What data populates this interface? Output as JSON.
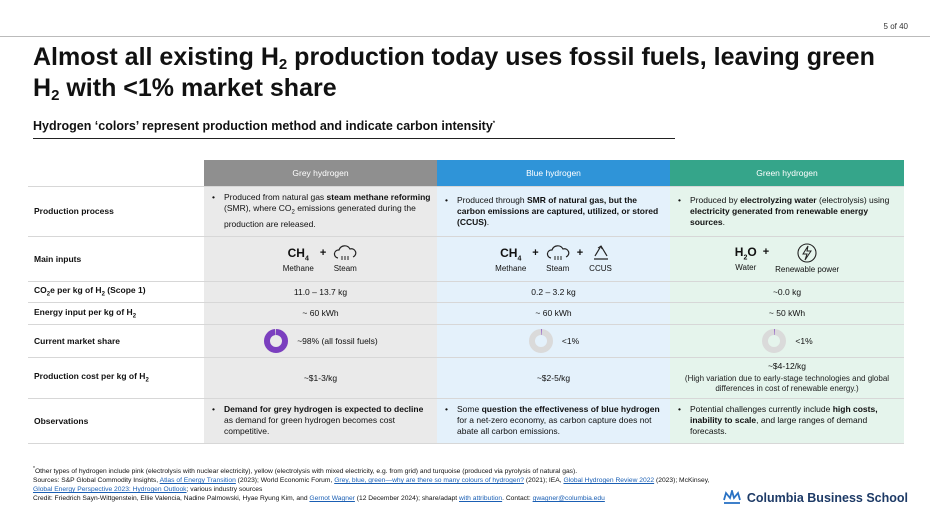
{
  "page": {
    "number": "5 of 40"
  },
  "title": {
    "part1": "Almost all existing H",
    "sub1": "2",
    "part2": " production today uses fossil fuels, leaving green H",
    "sub2": "2",
    "part3": " with <1% market share"
  },
  "subtitle": {
    "text": "Hydrogen ‘colors’ represent production method and indicate carbon intensity",
    "mark": "*"
  },
  "columns": [
    "Grey hydrogen",
    "Blue hydrogen",
    "Green hydrogen"
  ],
  "rows": {
    "production_process": {
      "label": "Production process",
      "grey": {
        "a": "Produced from natural gas ",
        "b": "steam methane reforming",
        "c": " (SMR), where CO",
        "sub": "2",
        "d": " emissions generated during the production are released."
      },
      "blue": {
        "a": "Produced through ",
        "b": "SMR of natural gas, but the carbon emissions are captured, utilized, or stored (CCUS)",
        "c": "."
      },
      "green": {
        "a": "Produced by ",
        "b": "electrolyzing water",
        "c": " (electrolysis) using ",
        "d": "electricity generated from renewable energy sources",
        "e": "."
      }
    },
    "main_inputs": {
      "label": "Main inputs",
      "grey": {
        "ch4": "CH",
        "ch4_sub": "4",
        "plus": "+",
        "methane": "Methane",
        "steam": "Steam"
      },
      "blue": {
        "ch4": "CH",
        "ch4_sub": "4",
        "plus": "+",
        "methane": "Methane",
        "steam": "Steam",
        "ccus": "CCUS"
      },
      "green": {
        "h2o_a": "H",
        "h2o_sub": "2",
        "h2o_b": "O",
        "plus": "+",
        "water": "Water",
        "power": "Renewable power"
      }
    },
    "co2e": {
      "label_a": "CO",
      "label_sub1": "2",
      "label_b": "e per kg of H",
      "label_sub2": "2",
      "label_c": " (Scope 1)",
      "grey": "11.0 – 13.7 kg",
      "blue": "0.2 – 3.2 kg",
      "green": "~0.0 kg"
    },
    "energy": {
      "label_a": "Energy input per kg of H",
      "label_sub": "2",
      "grey": "~ 60 kWh",
      "blue": "~ 60 kWh",
      "green": "~ 50 kWh"
    },
    "market_share": {
      "label": "Current market share",
      "grey": "~98% (all fossil fuels)",
      "blue": "<1%",
      "green": "<1%",
      "grey_value": 98,
      "blue_value": 1,
      "green_value": 1,
      "fill_color": "#7b3fbf",
      "empty_color": "#dadada"
    },
    "cost": {
      "label_a": "Production cost per kg of H",
      "label_sub": "2",
      "grey": "~$1-3/kg",
      "blue": "~$2-5/kg",
      "green": "~$4-12/kg",
      "green_note": "(High variation due to early-stage technologies and global differences in cost of renewable energy.)"
    },
    "observations": {
      "label": "Observations",
      "grey": {
        "b": "Demand for grey hydrogen is expected to decline",
        "c": " as demand for green hydrogen becomes cost competitive."
      },
      "blue": {
        "a": "Some ",
        "b": "question the effectiveness of blue hydrogen",
        "c": " for a net-zero economy, as carbon capture does not abate all carbon emissions."
      },
      "green": {
        "a": "Potential challenges currently include ",
        "b": "high costs, inability to scale",
        "c": ", and large ranges of demand forecasts."
      }
    }
  },
  "footnotes": {
    "star": "*",
    "line1": "Other types of hydrogen include pink (electrolysis with nuclear electricity), yellow (electrolysis with mixed electricity, e.g. from grid) and turquoise (produced via pyrolysis of natural gas).",
    "src_a": "Sources: S&P Global Commodity Insights, ",
    "src_link1": "Atlas of Energy Transition",
    "src_b": " (2023); World Economic Forum, ",
    "src_link2": "Grey, blue, green—why are there so many colours of hydrogen?",
    "src_c": " (2021); IEA, ",
    "src_link3": "Global Hydrogen Review 2022",
    "src_d": " (2023); McKinsey, ",
    "src_link4": "Global Energy Perspective 2023: Hydrogen Outlook",
    "src_e": "; various industry sources",
    "credit_a": "Credit: Friedrich Sayn-Wittgenstein, Ellie Valencia, Nadine Palmowski, Hyae Ryung Kim, and ",
    "credit_link1": "Gernot Wagner",
    "credit_b": " (12 December 2024); share/adapt ",
    "credit_link2": "with attribution",
    "credit_c": ". Contact: ",
    "credit_link3": "gwagner@columbia.edu"
  },
  "logo": {
    "text": "Columbia Business School",
    "icon": "crown-icon"
  }
}
